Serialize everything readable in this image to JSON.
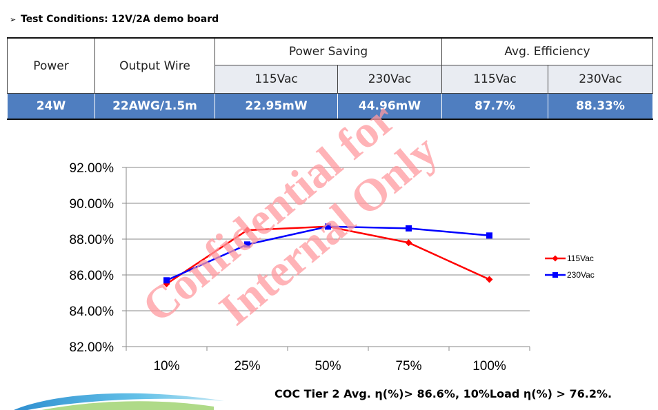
{
  "heading": {
    "arrow": "➢",
    "text": "Test Conditions: 12V/2A demo board"
  },
  "table": {
    "col_power": "Power",
    "col_wire": "Output Wire",
    "group_saving": "Power Saving",
    "group_eff": "Avg. Efficiency",
    "sub_115": "115Vac",
    "sub_230": "230Vac",
    "sub_115b": "115Vac",
    "sub_230b": "230Vac",
    "row": {
      "power": "24W",
      "wire": "22AWG/1.5m",
      "saving_115": "22.95mW",
      "saving_230": "44.96mW",
      "eff_115": "87.7%",
      "eff_230": "88.33%"
    }
  },
  "chart_data": {
    "type": "line",
    "categories": [
      "10%",
      "25%",
      "50%",
      "75%",
      "100%"
    ],
    "series": [
      {
        "name": "115Vac",
        "color": "#ff0000",
        "marker": "diamond",
        "values": [
          85.5,
          88.5,
          88.7,
          87.8,
          85.75
        ]
      },
      {
        "name": "230Vac",
        "color": "#0000ff",
        "marker": "square",
        "values": [
          85.7,
          87.7,
          88.7,
          88.6,
          88.2
        ]
      }
    ],
    "ylim": [
      82,
      92
    ],
    "yticks": [
      "82.00%",
      "84.00%",
      "86.00%",
      "88.00%",
      "90.00%",
      "92.00%"
    ],
    "grid": true,
    "legend": "right"
  },
  "watermark": {
    "line1": "Confidential for",
    "line2": "Internal Only",
    "color": "#ff9aa0"
  },
  "footer": "COC Tier 2  Avg. η(%)> 86.6%,  10%Load η(%) > 76.2%."
}
